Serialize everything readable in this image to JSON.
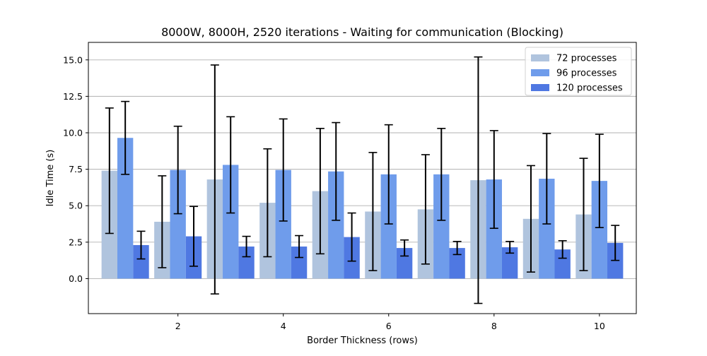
{
  "chart_data": {
    "type": "bar",
    "title": "8000W, 8000H, 2520 iterations - Waiting for communication (Blocking)",
    "xlabel": "Border Thickness (rows)",
    "ylabel": "Idle Time (s)",
    "x": [
      1,
      2,
      3,
      4,
      5,
      6,
      7,
      8,
      9,
      10
    ],
    "xticks": [
      2,
      4,
      6,
      8,
      10
    ],
    "yticks": [
      0.0,
      2.5,
      5.0,
      7.5,
      10.0,
      12.5,
      15.0
    ],
    "ytick_labels": [
      "0.0",
      "2.5",
      "5.0",
      "7.5",
      "10.0",
      "12.5",
      "15.0"
    ],
    "xlim": [
      0.3,
      10.7
    ],
    "ylim": [
      -2.4,
      16.2
    ],
    "grid": "y",
    "legend_position": "top-right",
    "series": [
      {
        "name": "72 processes",
        "color": "#b0c4de",
        "values": [
          7.4,
          3.9,
          6.8,
          5.2,
          6.0,
          4.6,
          4.75,
          6.75,
          4.1,
          4.4
        ],
        "errors": [
          4.3,
          3.15,
          7.85,
          3.7,
          4.3,
          4.05,
          3.75,
          8.45,
          3.65,
          3.85
        ]
      },
      {
        "name": "96 processes",
        "color": "#6f9ceb",
        "values": [
          9.65,
          7.45,
          7.8,
          7.45,
          7.35,
          7.15,
          7.15,
          6.8,
          6.85,
          6.7
        ],
        "errors": [
          2.5,
          3.0,
          3.3,
          3.5,
          3.35,
          3.4,
          3.15,
          3.35,
          3.1,
          3.2
        ]
      },
      {
        "name": "120 processes",
        "color": "#4f78e2",
        "values": [
          2.3,
          2.9,
          2.2,
          2.2,
          2.85,
          2.1,
          2.1,
          2.15,
          2.0,
          2.45
        ],
        "errors": [
          0.95,
          2.05,
          0.7,
          0.75,
          1.65,
          0.55,
          0.45,
          0.4,
          0.6,
          1.2
        ]
      }
    ]
  }
}
